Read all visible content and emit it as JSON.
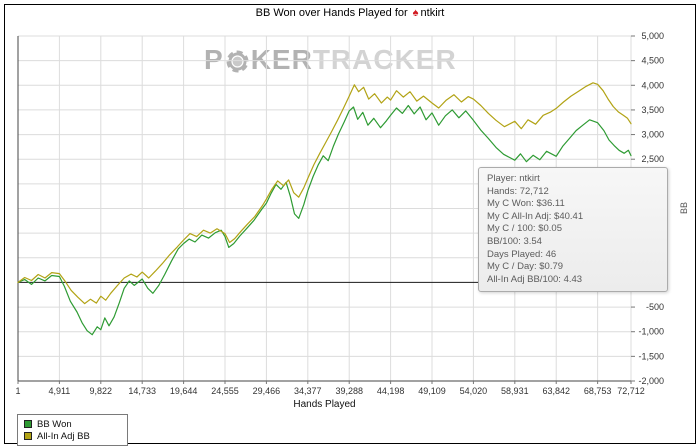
{
  "header": {
    "title_prefix": "BB Won over Hands Played for",
    "player": "ntkirt"
  },
  "watermark": {
    "p": "P",
    "ker": "KER",
    "tracker": "TRACKER"
  },
  "tooltip": {
    "lines": [
      "Player: ntkirt",
      "Hands: 72,712",
      "My C Won: $36.11",
      "My C All-In Adj: $40.41",
      "My C / 100: $0.05",
      "BB/100: 3.54",
      "Days Played: 46",
      "My C / Day: $0.79",
      "All-In Adj BB/100: 4.43"
    ]
  },
  "chart_data": {
    "type": "line",
    "title": "BB Won over Hands Played for ntkirt",
    "xlabel": "Hands Played",
    "ylabel": "BB",
    "xlim": [
      1,
      72712
    ],
    "ylim": [
      -2000,
      5000
    ],
    "grid": true,
    "legend_position": "bottom-left",
    "x_ticks": [
      1,
      4911,
      9822,
      14733,
      19644,
      24555,
      29466,
      34377,
      39288,
      44198,
      49109,
      54020,
      58931,
      63842,
      68753,
      72712
    ],
    "y_ticks": [
      -2000,
      -1500,
      -1000,
      -500,
      0,
      500,
      1000,
      1500,
      2000,
      2500,
      3000,
      3500,
      4000,
      4500,
      5000
    ],
    "series": [
      {
        "name": "BB Won",
        "color": "#2e9b33",
        "final_value": 2574,
        "points": [
          [
            1,
            0
          ],
          [
            800,
            60
          ],
          [
            1600,
            -40
          ],
          [
            2400,
            90
          ],
          [
            3200,
            30
          ],
          [
            4000,
            140
          ],
          [
            4911,
            120
          ],
          [
            5500,
            -80
          ],
          [
            6200,
            -380
          ],
          [
            7000,
            -600
          ],
          [
            7600,
            -820
          ],
          [
            8200,
            -980
          ],
          [
            8800,
            -1060
          ],
          [
            9400,
            -900
          ],
          [
            9822,
            -960
          ],
          [
            10300,
            -720
          ],
          [
            10800,
            -880
          ],
          [
            11400,
            -700
          ],
          [
            12000,
            -420
          ],
          [
            12600,
            -120
          ],
          [
            13200,
            30
          ],
          [
            13800,
            -60
          ],
          [
            14733,
            70
          ],
          [
            15400,
            -120
          ],
          [
            16000,
            -220
          ],
          [
            16700,
            -60
          ],
          [
            17400,
            160
          ],
          [
            18200,
            430
          ],
          [
            19000,
            680
          ],
          [
            19644,
            790
          ],
          [
            20300,
            880
          ],
          [
            21000,
            820
          ],
          [
            21800,
            960
          ],
          [
            22600,
            900
          ],
          [
            23400,
            1010
          ],
          [
            24100,
            1060
          ],
          [
            24555,
            930
          ],
          [
            25000,
            710
          ],
          [
            25600,
            790
          ],
          [
            26300,
            940
          ],
          [
            27100,
            1090
          ],
          [
            28000,
            1260
          ],
          [
            28900,
            1480
          ],
          [
            29466,
            1610
          ],
          [
            30000,
            1800
          ],
          [
            30600,
            1990
          ],
          [
            31200,
            1890
          ],
          [
            31800,
            2030
          ],
          [
            32300,
            1750
          ],
          [
            32800,
            1390
          ],
          [
            33300,
            1300
          ],
          [
            33900,
            1580
          ],
          [
            34377,
            1860
          ],
          [
            35000,
            2150
          ],
          [
            35600,
            2380
          ],
          [
            36200,
            2570
          ],
          [
            36800,
            2470
          ],
          [
            37400,
            2760
          ],
          [
            38000,
            3010
          ],
          [
            38700,
            3260
          ],
          [
            39288,
            3480
          ],
          [
            39800,
            3560
          ],
          [
            40300,
            3310
          ],
          [
            40900,
            3450
          ],
          [
            41500,
            3190
          ],
          [
            42200,
            3330
          ],
          [
            43000,
            3140
          ],
          [
            43700,
            3280
          ],
          [
            44198,
            3390
          ],
          [
            44900,
            3540
          ],
          [
            45600,
            3430
          ],
          [
            46300,
            3590
          ],
          [
            47000,
            3420
          ],
          [
            47700,
            3560
          ],
          [
            48400,
            3300
          ],
          [
            49109,
            3440
          ],
          [
            49900,
            3190
          ],
          [
            50700,
            3380
          ],
          [
            51500,
            3500
          ],
          [
            52300,
            3340
          ],
          [
            53100,
            3480
          ],
          [
            54020,
            3290
          ],
          [
            54900,
            3090
          ],
          [
            55800,
            2920
          ],
          [
            56700,
            2740
          ],
          [
            57600,
            2600
          ],
          [
            58931,
            2480
          ],
          [
            59600,
            2610
          ],
          [
            60300,
            2450
          ],
          [
            61100,
            2580
          ],
          [
            61900,
            2490
          ],
          [
            62700,
            2660
          ],
          [
            63842,
            2560
          ],
          [
            64600,
            2760
          ],
          [
            65400,
            2920
          ],
          [
            66200,
            3080
          ],
          [
            67000,
            3190
          ],
          [
            67800,
            3300
          ],
          [
            68753,
            3240
          ],
          [
            69500,
            3080
          ],
          [
            70100,
            2890
          ],
          [
            70700,
            2780
          ],
          [
            71300,
            2680
          ],
          [
            71900,
            2620
          ],
          [
            72400,
            2680
          ],
          [
            72712,
            2574
          ]
        ]
      },
      {
        "name": "All-In Adj BB",
        "color": "#b2a315",
        "final_value": 3221,
        "points": [
          [
            1,
            0
          ],
          [
            800,
            100
          ],
          [
            1600,
            40
          ],
          [
            2400,
            160
          ],
          [
            3200,
            90
          ],
          [
            4000,
            200
          ],
          [
            4911,
            180
          ],
          [
            5600,
            20
          ],
          [
            6300,
            -160
          ],
          [
            7100,
            -300
          ],
          [
            7900,
            -430
          ],
          [
            8600,
            -340
          ],
          [
            9300,
            -420
          ],
          [
            9822,
            -280
          ],
          [
            10400,
            -360
          ],
          [
            11000,
            -220
          ],
          [
            11800,
            -60
          ],
          [
            12600,
            90
          ],
          [
            13400,
            170
          ],
          [
            14100,
            110
          ],
          [
            14733,
            210
          ],
          [
            15500,
            90
          ],
          [
            16300,
            230
          ],
          [
            17100,
            380
          ],
          [
            18000,
            560
          ],
          [
            18900,
            720
          ],
          [
            19644,
            860
          ],
          [
            20400,
            990
          ],
          [
            21200,
            930
          ],
          [
            22000,
            1060
          ],
          [
            22800,
            1000
          ],
          [
            23600,
            1090
          ],
          [
            24555,
            990
          ],
          [
            25100,
            810
          ],
          [
            25700,
            890
          ],
          [
            26400,
            1030
          ],
          [
            27200,
            1180
          ],
          [
            28100,
            1340
          ],
          [
            29000,
            1560
          ],
          [
            29466,
            1690
          ],
          [
            30100,
            1890
          ],
          [
            30800,
            2060
          ],
          [
            31500,
            1960
          ],
          [
            32100,
            2080
          ],
          [
            32700,
            1820
          ],
          [
            33300,
            1730
          ],
          [
            33900,
            1920
          ],
          [
            34377,
            2110
          ],
          [
            35100,
            2390
          ],
          [
            35800,
            2620
          ],
          [
            36500,
            2840
          ],
          [
            37200,
            3060
          ],
          [
            37900,
            3290
          ],
          [
            38600,
            3530
          ],
          [
            39288,
            3780
          ],
          [
            39900,
            4010
          ],
          [
            40400,
            3870
          ],
          [
            41000,
            3960
          ],
          [
            41600,
            3720
          ],
          [
            42300,
            3830
          ],
          [
            43100,
            3640
          ],
          [
            43800,
            3760
          ],
          [
            44198,
            3700
          ],
          [
            44900,
            3890
          ],
          [
            45700,
            3760
          ],
          [
            46500,
            3870
          ],
          [
            47300,
            3680
          ],
          [
            48100,
            3780
          ],
          [
            49109,
            3640
          ],
          [
            49900,
            3540
          ],
          [
            50800,
            3700
          ],
          [
            51700,
            3810
          ],
          [
            52600,
            3660
          ],
          [
            53400,
            3770
          ],
          [
            54020,
            3720
          ],
          [
            54900,
            3590
          ],
          [
            55800,
            3430
          ],
          [
            56700,
            3290
          ],
          [
            57700,
            3160
          ],
          [
            58931,
            3270
          ],
          [
            59700,
            3120
          ],
          [
            60500,
            3300
          ],
          [
            61400,
            3210
          ],
          [
            62300,
            3390
          ],
          [
            63200,
            3460
          ],
          [
            63842,
            3530
          ],
          [
            64700,
            3660
          ],
          [
            65600,
            3780
          ],
          [
            66500,
            3880
          ],
          [
            67400,
            3980
          ],
          [
            68200,
            4050
          ],
          [
            68753,
            4020
          ],
          [
            69400,
            3890
          ],
          [
            70000,
            3720
          ],
          [
            70600,
            3570
          ],
          [
            71200,
            3460
          ],
          [
            71800,
            3390
          ],
          [
            72300,
            3330
          ],
          [
            72712,
            3221
          ]
        ]
      }
    ]
  }
}
